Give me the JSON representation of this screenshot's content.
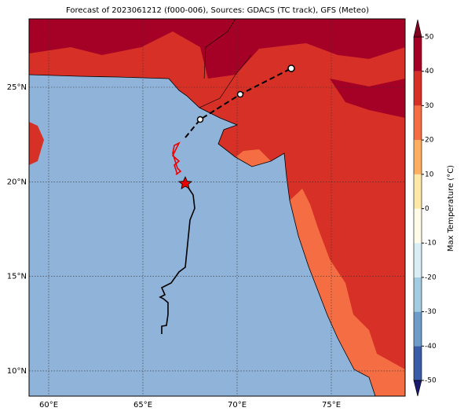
{
  "title": "Forecast of 2023061212 (f000-006), Sources: GDACS (TC track), GFS (Meteo)",
  "map": {
    "lon_ticks": [
      "60°E",
      "65°E",
      "70°E",
      "75°E"
    ],
    "lat_ticks": [
      "25°N",
      "20°N",
      "15°N",
      "10°N"
    ]
  },
  "colorbar": {
    "label": "Max Temperature (°C)",
    "ticks": [
      -50,
      -40,
      -30,
      -20,
      -10,
      0,
      10,
      20,
      30,
      40,
      50
    ]
  }
}
